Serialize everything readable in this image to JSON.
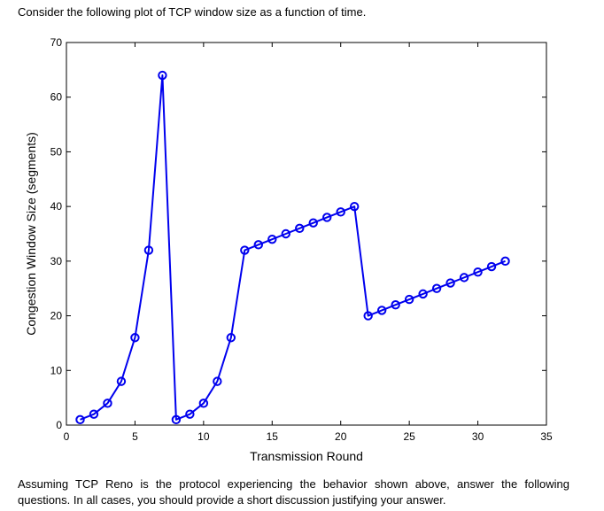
{
  "intro_text": "Consider the following plot of TCP window size as a function of time.",
  "outro_text": "Assuming TCP Reno is the protocol experiencing the behavior shown above, answer the following questions. In all cases, you should provide a short discussion justifying your answer.",
  "chart_data": {
    "type": "line",
    "title": "",
    "xlabel": "Transmission Round",
    "ylabel": "Congestion Window Size (segments)",
    "xlim": [
      0,
      35
    ],
    "ylim": [
      0,
      70
    ],
    "xticks": [
      0,
      5,
      10,
      15,
      20,
      25,
      30,
      35
    ],
    "yticks": [
      0,
      10,
      20,
      30,
      40,
      50,
      60,
      70
    ],
    "grid": false,
    "series": [
      {
        "color": "#0000ee",
        "marker": "circle",
        "x": [
          1,
          2,
          3,
          4,
          5,
          6,
          7,
          8,
          9,
          10,
          11,
          12,
          13,
          14,
          15,
          16,
          17,
          18,
          19,
          20,
          21,
          22,
          23,
          24,
          25,
          26,
          27,
          28,
          29,
          30,
          31,
          32
        ],
        "y": [
          1,
          2,
          4,
          8,
          16,
          32,
          64,
          1,
          2,
          4,
          8,
          16,
          32,
          33,
          34,
          35,
          36,
          37,
          38,
          39,
          40,
          20,
          21,
          22,
          23,
          24,
          25,
          26,
          27,
          28,
          29,
          30
        ]
      }
    ]
  }
}
